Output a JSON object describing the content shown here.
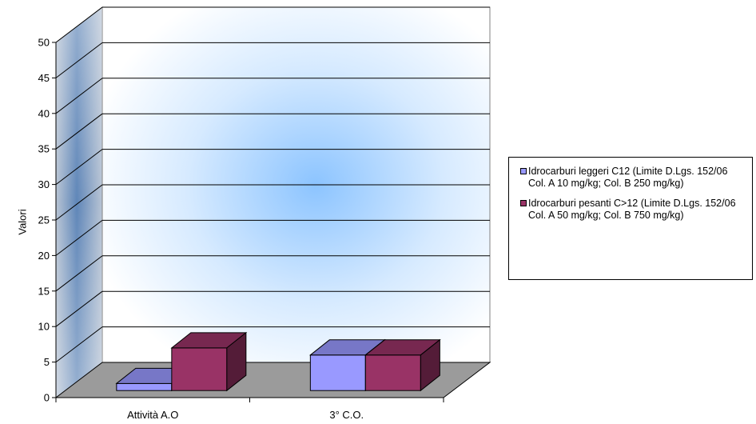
{
  "chart_data": {
    "type": "bar",
    "categories": [
      "Attività A.O",
      "3°  C.O."
    ],
    "series": [
      {
        "name": "Idrocarburi leggeri C12 (Limite D.Lgs. 152/06 Col. A 10 mg/kg; Col. B 250 mg/kg)",
        "values": [
          1,
          5
        ],
        "color": "#9999ff"
      },
      {
        "name": "Idrocarburi pesanti C>12 (Limite D.Lgs. 152/06 Col. A 50 mg/kg; Col. B 750 mg/kg)",
        "values": [
          6,
          5
        ],
        "color": "#993366"
      }
    ],
    "ylabel": "Valori",
    "ylim": [
      0,
      50
    ],
    "yticks": [
      "0",
      "5",
      "10",
      "15",
      "20",
      "25",
      "30",
      "35",
      "40",
      "45",
      "50"
    ],
    "grid": true,
    "legend_position": "right",
    "style": "3d-clustered-column"
  }
}
